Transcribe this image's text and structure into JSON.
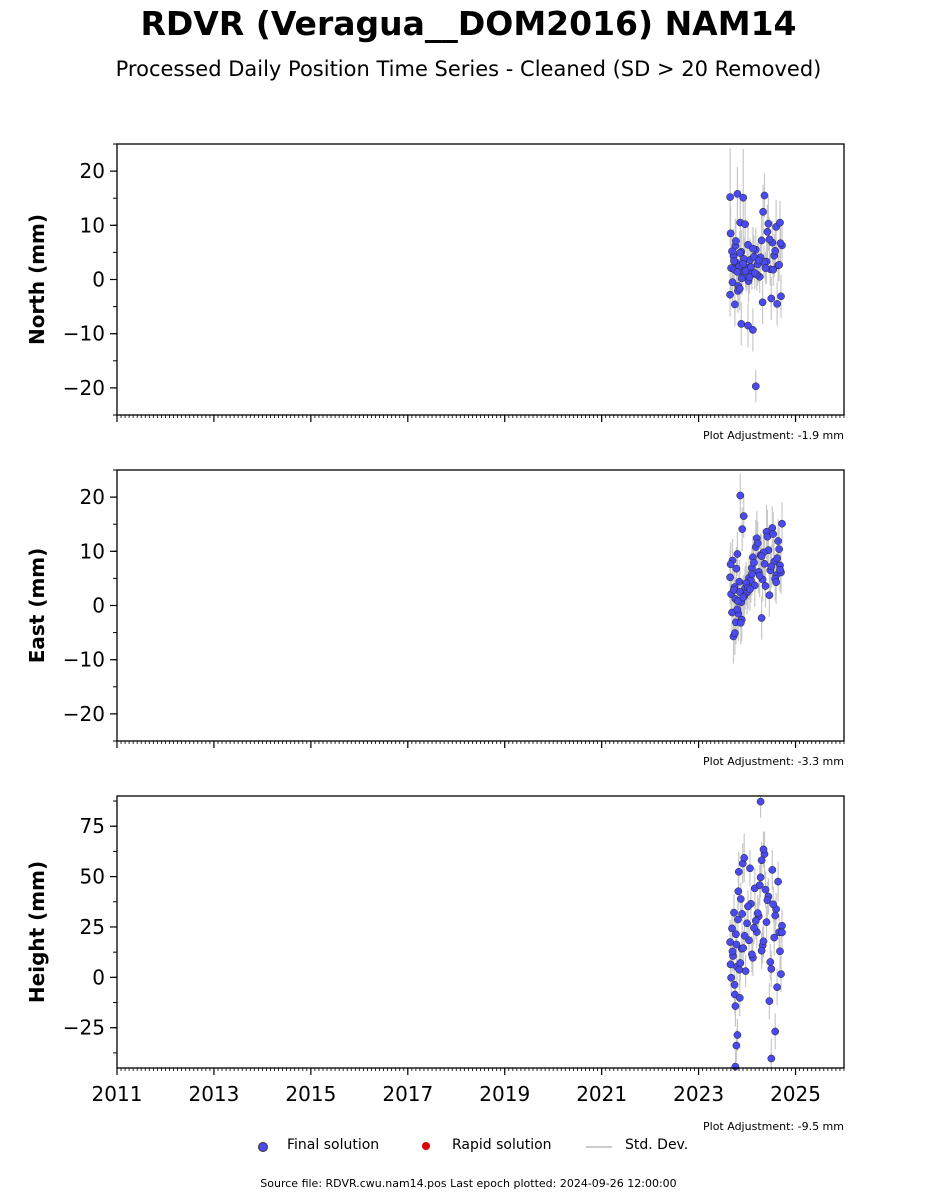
{
  "header": {
    "title": "RDVR (Veragua__DOM2016) NAM14",
    "subtitle": "Processed Daily Position Time Series - Cleaned (SD > 20 Removed)"
  },
  "legend": {
    "final": "Final solution",
    "rapid": "Rapid solution",
    "std": "Std. Dev."
  },
  "footer": {
    "source": "Source file: RDVR.cwu.nam14.pos  Last epoch plotted: 2024-09-26 12:00:00"
  },
  "colors": {
    "final": "#4a4aee",
    "rapid": "#dd0000",
    "std": "#c8c8c8"
  },
  "chart_data": [
    {
      "type": "scatter",
      "ylabel": "North (mm)",
      "adjustment": "Plot Adjustment: -1.9 mm",
      "xlim": [
        2011,
        2026
      ],
      "ylim": [
        -25,
        25
      ],
      "yticks": [
        -20,
        -10,
        0,
        10,
        20
      ],
      "yticklabels": [
        "−20",
        "−10",
        "0",
        "10",
        "20"
      ],
      "series": [
        {
          "name": "Final solution",
          "x": [
            2023.65,
            2023.67,
            2023.7,
            2023.72,
            2023.74,
            2023.76,
            2023.78,
            2023.8,
            2023.82,
            2023.84,
            2023.86,
            2023.88,
            2023.9,
            2023.92,
            2023.94,
            2023.96,
            2023.98,
            2024.0,
            2024.03,
            2024.06,
            2024.1,
            2024.14,
            2024.18,
            2024.22,
            2024.26,
            2024.3,
            2024.33,
            2024.36,
            2024.4,
            2024.44,
            2024.48,
            2024.52,
            2024.56,
            2024.6,
            2024.64,
            2024.68,
            2024.72,
            2023.66,
            2023.69,
            2023.73,
            2023.77,
            2023.81,
            2023.85,
            2023.89,
            2023.93,
            2023.97,
            2024.02,
            2024.08,
            2024.12,
            2024.2,
            2024.28,
            2024.35,
            2024.42,
            2024.5,
            2024.58,
            2024.66,
            2024.7,
            2023.65,
            2023.75,
            2023.8,
            2023.85,
            2023.92,
            2024.05,
            2024.16,
            2024.24,
            2024.32,
            2024.38,
            2024.46,
            2024.54,
            2024.62,
            2024.69,
            2023.88,
            2024.02,
            2024.12,
            2024.18
          ],
          "y": [
            15.2,
            2.1,
            -0.5,
            4.3,
            1.8,
            6.2,
            3.1,
            15.8,
            -1.2,
            2.4,
            10.5,
            5.1,
            1.3,
            15.1,
            3.7,
            10.2,
            0.8,
            2.2,
            -0.3,
            3.6,
            1.1,
            4.2,
            5.5,
            2.8,
            0.5,
            7.2,
            12.5,
            15.5,
            3.3,
            10.3,
            1.9,
            6.8,
            4.4,
            9.7,
            2.6,
            10.5,
            6.3,
            8.5,
            5.2,
            3.4,
            7.1,
            -2.1,
            4.9,
            0.2,
            3.8,
            1.6,
            6.4,
            2.3,
            5.7,
            0.9,
            4.1,
            3.2,
            8.8,
            -3.5,
            5.3,
            2.7,
            -3.1,
            -2.8,
            -4.6,
            1.4,
            -1.7,
            2.9,
            0.4,
            1.2,
            3.5,
            -4.2,
            2.1,
            7.4,
            1.8,
            -4.5,
            6.7,
            -8.2,
            -8.5,
            -9.3,
            -19.7
          ],
          "err": [
            9,
            4,
            4,
            5,
            4,
            5,
            4,
            5,
            4,
            4,
            6,
            4,
            4,
            9,
            4,
            5,
            3,
            4,
            4,
            4,
            3,
            4,
            4,
            4,
            3,
            5,
            5,
            4,
            4,
            5,
            3,
            4,
            4,
            5,
            3,
            4,
            4,
            5,
            4,
            4,
            4,
            4,
            4,
            3,
            4,
            3,
            4,
            3,
            4,
            3,
            4,
            3,
            5,
            4,
            4,
            3,
            4,
            4,
            4,
            3,
            4,
            3,
            3,
            3,
            4,
            4,
            3,
            4,
            3,
            4,
            4,
            4,
            4,
            4,
            3
          ]
        }
      ]
    },
    {
      "type": "scatter",
      "ylabel": "East (mm)",
      "adjustment": "Plot Adjustment: -3.3 mm",
      "xlim": [
        2011,
        2026
      ],
      "ylim": [
        -25,
        25
      ],
      "yticks": [
        -20,
        -10,
        0,
        10,
        20
      ],
      "yticklabels": [
        "−20",
        "−10",
        "0",
        "10",
        "20"
      ],
      "series": [
        {
          "name": "Final solution",
          "x": [
            2023.65,
            2023.67,
            2023.7,
            2023.72,
            2023.74,
            2023.76,
            2023.78,
            2023.8,
            2023.82,
            2023.84,
            2023.86,
            2023.88,
            2023.9,
            2023.93,
            2023.96,
            2024.0,
            2024.04,
            2024.08,
            2024.12,
            2024.16,
            2024.2,
            2024.24,
            2024.28,
            2024.32,
            2024.36,
            2024.4,
            2024.44,
            2024.48,
            2024.52,
            2024.56,
            2024.6,
            2024.64,
            2024.68,
            2024.72,
            2023.66,
            2023.69,
            2023.73,
            2023.77,
            2023.81,
            2023.85,
            2023.89,
            2023.94,
            2023.98,
            2024.02,
            2024.1,
            2024.18,
            2024.26,
            2024.34,
            2024.42,
            2024.5,
            2024.58,
            2024.66,
            2024.7,
            2024.46,
            2024.54,
            2024.62,
            2024.38,
            2024.3,
            2024.22,
            2024.14,
            2023.75,
            2023.8,
            2023.87,
            2023.92,
            2024.06,
            2024.1,
            2024.3,
            2024.6,
            2024.68
          ],
          "y": [
            5.2,
            2.1,
            8.3,
            -5.7,
            3.4,
            1.2,
            6.8,
            9.5,
            -1.5,
            4.4,
            20.3,
            0.6,
            14.1,
            16.5,
            3.2,
            2.4,
            5.1,
            4.6,
            8.9,
            3.7,
            12.4,
            6.2,
            9.3,
            4.8,
            7.7,
            13.6,
            10.2,
            6.5,
            14.3,
            8.1,
            5.6,
            11.9,
            7.4,
            15.1,
            7.6,
            -1.3,
            2.9,
            -3.1,
            0.8,
            2.5,
            -2.6,
            1.7,
            4.1,
            3.3,
            6.9,
            10.8,
            5.5,
            9.8,
            12.7,
            7.2,
            4.9,
            10.4,
            6.1,
            1.9,
            13.2,
            8.7,
            3.6,
            -2.3,
            11.5,
            7.9,
            -5.1,
            -0.7,
            -3.2,
            1.5,
            3.0,
            5.8,
            9.1,
            4.3,
            6.6
          ],
          "err": [
            5,
            4,
            4,
            5,
            4,
            4,
            4,
            4,
            5,
            4,
            4,
            4,
            4,
            4,
            4,
            4,
            4,
            4,
            4,
            4,
            5,
            4,
            4,
            4,
            5,
            5,
            4,
            4,
            4,
            4,
            4,
            4,
            4,
            4,
            4,
            5,
            4,
            4,
            4,
            4,
            4,
            4,
            4,
            4,
            4,
            5,
            4,
            4,
            5,
            4,
            4,
            4,
            4,
            4,
            4,
            4,
            4,
            4,
            4,
            4,
            4,
            4,
            4,
            4,
            4,
            4,
            4,
            4,
            4
          ]
        }
      ]
    },
    {
      "type": "scatter",
      "ylabel": "Height (mm)",
      "adjustment": "Plot Adjustment: -9.5 mm",
      "xlim": [
        2011,
        2026
      ],
      "ylim": [
        -45,
        90
      ],
      "yticks": [
        -25,
        0,
        25,
        50,
        75
      ],
      "yticklabels": [
        "−25",
        "0",
        "25",
        "50",
        "75"
      ],
      "xticks": [
        2011,
        2013,
        2015,
        2017,
        2019,
        2021,
        2023,
        2025
      ],
      "xticklabels": [
        "2011",
        "2013",
        "2015",
        "2017",
        "2019",
        "2021",
        "2023",
        "2025"
      ],
      "series": [
        {
          "name": "Final solution",
          "x": [
            2023.65,
            2023.67,
            2023.69,
            2023.71,
            2023.73,
            2023.75,
            2023.77,
            2023.79,
            2023.81,
            2023.83,
            2023.85,
            2023.87,
            2023.89,
            2023.91,
            2023.94,
            2023.97,
            2024.0,
            2024.04,
            2024.08,
            2024.12,
            2024.16,
            2024.2,
            2024.24,
            2024.28,
            2024.32,
            2024.36,
            2024.4,
            2024.44,
            2024.48,
            2024.52,
            2024.56,
            2024.6,
            2024.64,
            2024.68,
            2024.72,
            2023.66,
            2023.7,
            2023.74,
            2023.78,
            2023.82,
            2023.86,
            2023.9,
            2023.95,
            2024.02,
            2024.1,
            2024.18,
            2024.26,
            2024.34,
            2024.42,
            2024.5,
            2024.58,
            2024.66,
            2024.7,
            2023.76,
            2023.84,
            2023.92,
            2024.06,
            2024.14,
            2024.22,
            2024.3,
            2024.38,
            2024.46,
            2024.54,
            2024.62,
            2023.8,
            2023.78,
            2024.28,
            2024.3,
            2024.34,
            2024.5,
            2024.72,
            2024.58,
            2023.76
          ],
          "y": [
            17.5,
            -0.2,
            24.3,
            10.6,
            32.1,
            -8.5,
            21.4,
            5.3,
            28.7,
            52.4,
            -10.2,
            38.9,
            14.2,
            56.5,
            59.3,
            3.1,
            26.8,
            18.4,
            36.5,
            9.7,
            44.2,
            22.5,
            30.3,
            49.6,
            15.8,
            61.2,
            27.4,
            40.1,
            7.6,
            53.3,
            19.7,
            33.8,
            47.5,
            12.9,
            25.6,
            6.4,
            12.8,
            -3.7,
            16.3,
            42.7,
            7.1,
            31.5,
            20.6,
            35.2,
            11.4,
            28.1,
            45.8,
            17.9,
            38.3,
            4.2,
            30.7,
            22.4,
            1.6,
            -14.3,
            3.8,
            14.5,
            54.1,
            24.6,
            31.9,
            13.2,
            43.5,
            -11.8,
            36.2,
            -4.9,
            -28.6,
            -33.9,
            87.2,
            58.1,
            63.5,
            -40.3,
            22.3,
            -26.9,
            -44.3
          ],
          "err": [
            11,
            9,
            10,
            8,
            9,
            10,
            8,
            9,
            9,
            10,
            9,
            8,
            9,
            10,
            12,
            8,
            9,
            9,
            8,
            9,
            10,
            8,
            9,
            10,
            9,
            11,
            8,
            9,
            9,
            10,
            9,
            8,
            10,
            9,
            8,
            9,
            9,
            9,
            8,
            9,
            9,
            8,
            9,
            8,
            9,
            9,
            10,
            8,
            9,
            9,
            8,
            9,
            9,
            10,
            9,
            9,
            9,
            8,
            9,
            9,
            9,
            9,
            9,
            9,
            8,
            8,
            8,
            9,
            9,
            10,
            8,
            9,
            8
          ]
        }
      ]
    }
  ]
}
